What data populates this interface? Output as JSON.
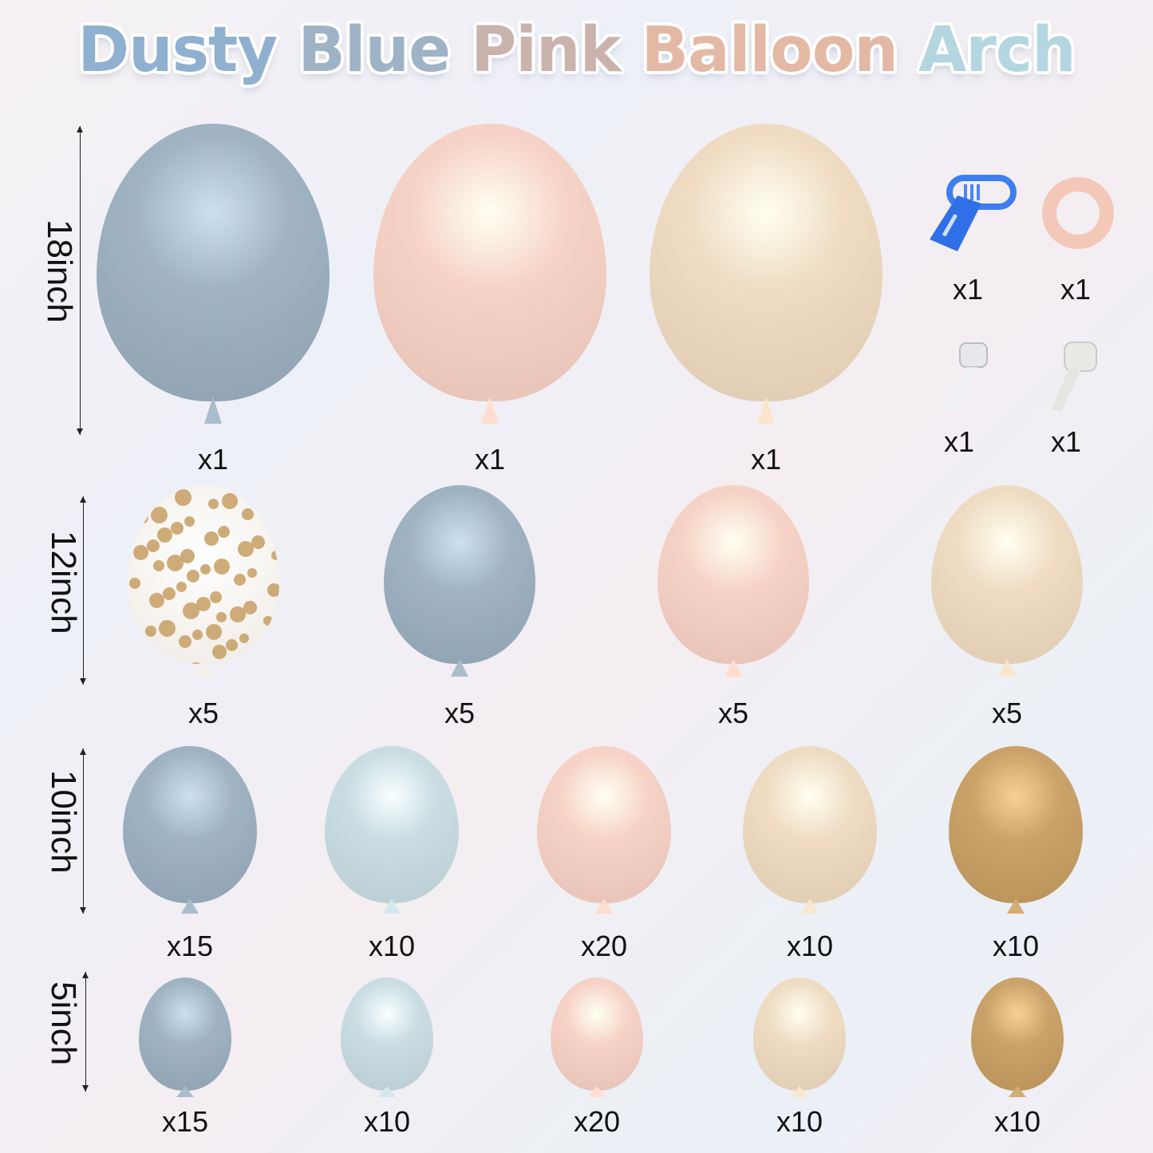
{
  "title": {
    "words": [
      {
        "text": "Dusty",
        "color": "#8fb0cf"
      },
      {
        "text": "Blue",
        "color": "#9fb3c6"
      },
      {
        "text": "Pink",
        "color": "#c9b3ac"
      },
      {
        "text": "Balloon",
        "color": "#e3b9a6"
      },
      {
        "text": "Arch",
        "color": "#b4d6e0"
      }
    ]
  },
  "colors": {
    "dusty_blue": "#a0b3c3",
    "pink": "#f6d3c6",
    "sand": "#efdcc3",
    "light_blue": "#cadde3",
    "gold": "#c9a36a",
    "confetti": "#f7f3ee"
  },
  "rows": [
    {
      "size_label": "18inch",
      "balloons": [
        {
          "color": "dusty_blue",
          "count": "x1"
        },
        {
          "color": "pink",
          "count": "x1"
        },
        {
          "color": "sand",
          "count": "x1"
        }
      ]
    },
    {
      "size_label": "12inch",
      "balloons": [
        {
          "color": "confetti",
          "count": "x5"
        },
        {
          "color": "dusty_blue",
          "count": "x5"
        },
        {
          "color": "pink",
          "count": "x5"
        },
        {
          "color": "sand",
          "count": "x5"
        }
      ]
    },
    {
      "size_label": "10inch",
      "balloons": [
        {
          "color": "dusty_blue",
          "count": "x15"
        },
        {
          "color": "light_blue",
          "count": "x10"
        },
        {
          "color": "pink",
          "count": "x20"
        },
        {
          "color": "sand",
          "count": "x10"
        },
        {
          "color": "gold",
          "count": "x10"
        }
      ]
    },
    {
      "size_label": "5inch",
      "balloons": [
        {
          "color": "dusty_blue",
          "count": "x15"
        },
        {
          "color": "light_blue",
          "count": "x10"
        },
        {
          "color": "pink",
          "count": "x20"
        },
        {
          "color": "sand",
          "count": "x10"
        },
        {
          "color": "gold",
          "count": "x10"
        }
      ]
    }
  ],
  "accessories": [
    {
      "icon": "balloon-tying-tool-icon",
      "count": "x1"
    },
    {
      "icon": "ribbon-roll-icon",
      "count": "x1"
    },
    {
      "icon": "balloon-strip-icon",
      "count": "x1"
    },
    {
      "icon": "glue-dots-icon",
      "count": "x1"
    }
  ]
}
